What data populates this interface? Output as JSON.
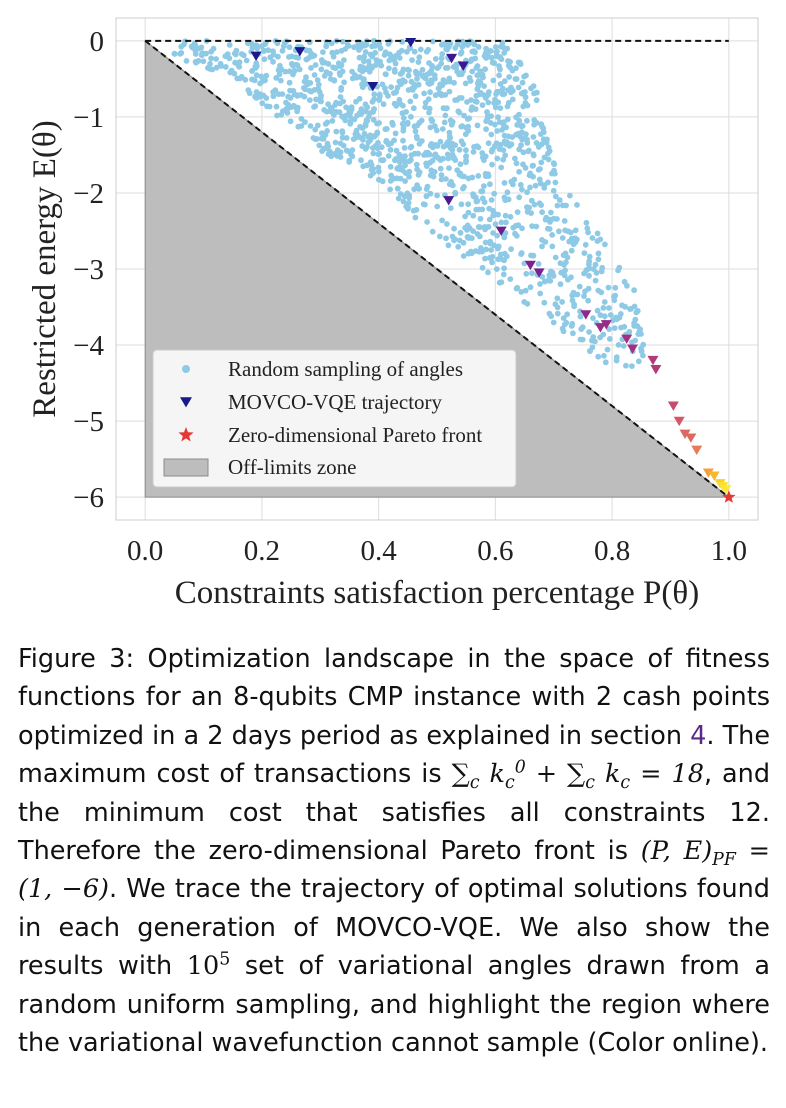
{
  "chart_data": {
    "type": "scatter",
    "xlabel": "Constraints satisfaction percentage P(θ)",
    "ylabel": "Restricted energy E(θ)",
    "xlim": [
      -0.05,
      1.05
    ],
    "ylim": [
      -6.3,
      0.3
    ],
    "xticks": [
      "0.0",
      "0.2",
      "0.4",
      "0.6",
      "0.8",
      "1.0"
    ],
    "yticks": [
      "0",
      "−1",
      "−2",
      "−3",
      "−4",
      "−5",
      "−6"
    ],
    "grid": true,
    "legend_position": "lower-left",
    "series": [
      {
        "name": "Random sampling of angles",
        "kind": "scatter",
        "color": "#8ecae6",
        "region_vertices": [
          [
            0,
            0
          ],
          [
            0.62,
            0
          ],
          [
            0.67,
            -0.6
          ],
          [
            0.7,
            -1.6
          ],
          [
            0.84,
            -3.3
          ],
          [
            0.86,
            -4.3
          ],
          [
            0.8,
            -4.3
          ],
          [
            0.12,
            -0.4
          ],
          [
            0,
            -0.1
          ]
        ]
      },
      {
        "name": "MOVCO-VQE trajectory",
        "kind": "triangle-down",
        "points": [
          {
            "x": 0.19,
            "y": -0.2,
            "color": "#1a1a8c"
          },
          {
            "x": 0.265,
            "y": -0.14,
            "color": "#1a1a8c"
          },
          {
            "x": 0.39,
            "y": -0.6,
            "color": "#1a1a8c"
          },
          {
            "x": 0.455,
            "y": -0.02,
            "color": "#1a1a8c"
          },
          {
            "x": 0.525,
            "y": -0.23,
            "color": "#3b1791"
          },
          {
            "x": 0.545,
            "y": -0.33,
            "color": "#3b1791"
          },
          {
            "x": 0.52,
            "y": -2.1,
            "color": "#4a1a91"
          },
          {
            "x": 0.61,
            "y": -2.5,
            "color": "#6a1f8f"
          },
          {
            "x": 0.66,
            "y": -2.95,
            "color": "#7a2390"
          },
          {
            "x": 0.675,
            "y": -3.05,
            "color": "#7a2390"
          },
          {
            "x": 0.755,
            "y": -3.6,
            "color": "#8d2a8a"
          },
          {
            "x": 0.78,
            "y": -3.77,
            "color": "#952c86"
          },
          {
            "x": 0.79,
            "y": -3.73,
            "color": "#952c86"
          },
          {
            "x": 0.825,
            "y": -3.92,
            "color": "#a2317f"
          },
          {
            "x": 0.835,
            "y": -4.05,
            "color": "#a2317f"
          },
          {
            "x": 0.87,
            "y": -4.2,
            "color": "#b23a79"
          },
          {
            "x": 0.875,
            "y": -4.32,
            "color": "#b23a79"
          },
          {
            "x": 0.905,
            "y": -4.8,
            "color": "#c84b6b"
          },
          {
            "x": 0.915,
            "y": -5.0,
            "color": "#d3566a"
          },
          {
            "x": 0.925,
            "y": -5.17,
            "color": "#dd6a5f"
          },
          {
            "x": 0.935,
            "y": -5.22,
            "color": "#dd6a5f"
          },
          {
            "x": 0.945,
            "y": -5.38,
            "color": "#e77a57"
          },
          {
            "x": 0.965,
            "y": -5.68,
            "color": "#f4a03f"
          },
          {
            "x": 0.975,
            "y": -5.72,
            "color": "#f7b72f"
          },
          {
            "x": 0.985,
            "y": -5.82,
            "color": "#f9cf2a"
          },
          {
            "x": 0.99,
            "y": -5.86,
            "color": "#fae32b"
          },
          {
            "x": 0.995,
            "y": -5.9,
            "color": "#fce83a"
          }
        ]
      },
      {
        "name": "Zero-dimensional Pareto front",
        "kind": "star",
        "color": "#e53935",
        "points": [
          {
            "x": 1.0,
            "y": -6.0
          }
        ]
      },
      {
        "name": "Off-limits zone",
        "kind": "region",
        "color": "#bdbdbd",
        "vertices": [
          [
            0,
            0
          ],
          [
            1,
            -6
          ],
          [
            0,
            -6
          ]
        ]
      }
    ],
    "reference_lines": [
      {
        "from": [
          0,
          0
        ],
        "to": [
          1,
          0
        ],
        "style": "dashed"
      },
      {
        "from": [
          0,
          0
        ],
        "to": [
          1,
          -6
        ],
        "style": "dashed"
      }
    ]
  },
  "caption": {
    "label": "Figure 3:",
    "t1": "Optimization landscape in the space of fitness functions for an 8-qubits CMP instance with 2 cash points optimized in a 2 days period as explained in section",
    "ref": "4",
    "t2": ". The maximum cost of transactions is",
    "t3": ", and the minimum cost that satisfies all constraints 12. Therefore the zero-dimensional Pareto front is",
    "t4": ". We trace the trajectory of optimal solutions found in each generation of MOVCO-VQE. We also show the results with",
    "t5": "set of variational angles drawn from a random uniform sampling, and highlight the region where the variational wavefunction cannot sample (Color online)."
  }
}
